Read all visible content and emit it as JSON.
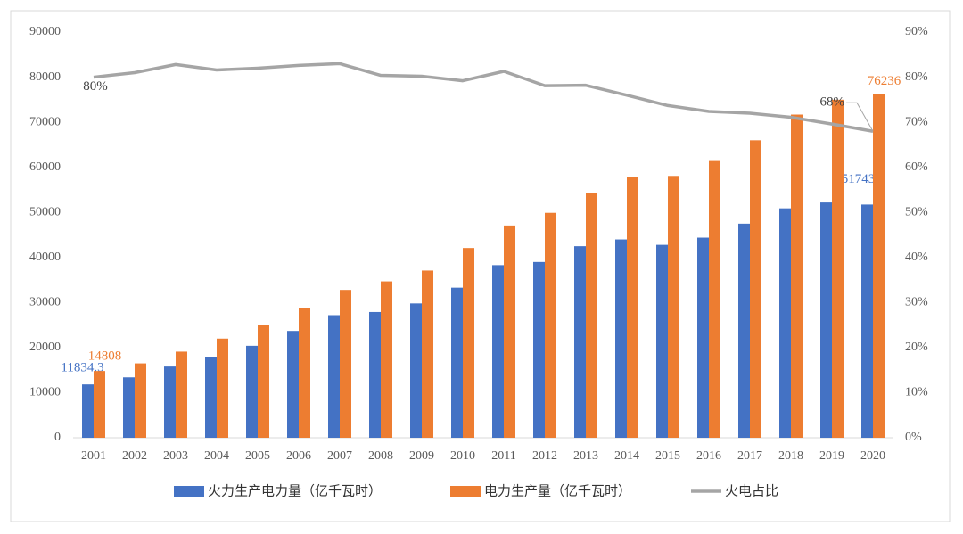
{
  "chart_data": {
    "type": "bar-line",
    "categories": [
      "2001",
      "2002",
      "2003",
      "2004",
      "2005",
      "2006",
      "2007",
      "2008",
      "2009",
      "2010",
      "2011",
      "2012",
      "2013",
      "2014",
      "2015",
      "2016",
      "2017",
      "2018",
      "2019",
      "2020"
    ],
    "series": [
      {
        "name": "火力生产电力量（亿千瓦时）",
        "type": "bar",
        "color": "#4472c4",
        "values": [
          11834.3,
          13400,
          15800,
          17900,
          20400,
          23700,
          27200,
          27900,
          29800,
          33300,
          38300,
          39000,
          42500,
          44000,
          42800,
          44400,
          47500,
          50900,
          52200,
          51743
        ],
        "value_labels": [
          "11834.3",
          null,
          null,
          null,
          null,
          null,
          null,
          null,
          null,
          null,
          null,
          null,
          null,
          null,
          null,
          null,
          null,
          null,
          null,
          "51743"
        ]
      },
      {
        "name": "电力生产量（亿千瓦时）",
        "type": "bar",
        "color": "#ed7d31",
        "values": [
          14808,
          16500,
          19100,
          22000,
          25000,
          28700,
          32800,
          34700,
          37100,
          42100,
          47100,
          49900,
          54300,
          57900,
          58100,
          61400,
          66000,
          71700,
          75000,
          76236
        ],
        "value_labels": [
          "14808",
          null,
          null,
          null,
          null,
          null,
          null,
          null,
          null,
          null,
          null,
          null,
          null,
          null,
          null,
          null,
          null,
          null,
          null,
          "76236"
        ]
      },
      {
        "name": "火电占比",
        "type": "line",
        "axis": "y2",
        "color": "#a5a5a5",
        "values": [
          80,
          81,
          82.8,
          81.6,
          82,
          82.6,
          83,
          80.4,
          80.2,
          79.2,
          81.3,
          78.1,
          78.2,
          76,
          73.7,
          72.4,
          72,
          71.1,
          69.6,
          68
        ],
        "value_labels": [
          "80%",
          null,
          null,
          null,
          null,
          null,
          null,
          null,
          null,
          null,
          null,
          null,
          null,
          null,
          null,
          null,
          null,
          null,
          null,
          "68%"
        ]
      }
    ],
    "ylim": [
      0,
      90000
    ],
    "yticks": [
      0,
      10000,
      20000,
      30000,
      40000,
      50000,
      60000,
      70000,
      80000,
      90000
    ],
    "y2lim": [
      0,
      90
    ],
    "y2ticks": [
      {
        "value": 0,
        "label": "0%"
      },
      {
        "value": 10,
        "label": "10%"
      },
      {
        "value": 20,
        "label": "20%"
      },
      {
        "value": 30,
        "label": "30%"
      },
      {
        "value": 40,
        "label": "40%"
      },
      {
        "value": 50,
        "label": "50%"
      },
      {
        "value": 60,
        "label": "60%"
      },
      {
        "value": 70,
        "label": "70%"
      },
      {
        "value": 80,
        "label": "80%"
      },
      {
        "value": 90,
        "label": "90%"
      }
    ],
    "legend": "bottom",
    "grid": false
  }
}
